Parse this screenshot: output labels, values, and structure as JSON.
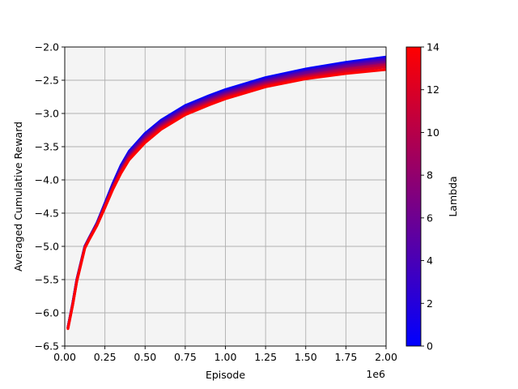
{
  "chart_data": {
    "type": "line",
    "title": "",
    "xlabel": "Episode",
    "ylabel": "Averaged Cumulative Reward",
    "x_offset_label": "1e6",
    "xlim": [
      0,
      2.0
    ],
    "ylim": [
      -6.5,
      -2.0
    ],
    "x_ticks": [
      "0.00",
      "0.25",
      "0.50",
      "0.75",
      "1.00",
      "1.25",
      "1.50",
      "1.75",
      "2.00"
    ],
    "y_ticks": [
      "−6.5",
      "−6.0",
      "−5.5",
      "−5.0",
      "−4.5",
      "−4.0",
      "−3.5",
      "−3.0",
      "−2.5",
      "−2.0"
    ],
    "grid": true,
    "plot_background": "#f4f4f4",
    "colorbar": {
      "label": "Lambda",
      "range": [
        0,
        14
      ],
      "ticks": [
        "0",
        "2",
        "4",
        "6",
        "8",
        "10",
        "12",
        "14"
      ],
      "colors": [
        "#0000ff",
        "#ff0000"
      ]
    },
    "x": [
      0.02,
      0.05,
      0.075,
      0.1,
      0.125,
      0.15,
      0.2,
      0.25,
      0.3,
      0.35,
      0.4,
      0.5,
      0.6,
      0.75,
      0.9,
      1.0,
      1.25,
      1.5,
      1.75,
      2.0
    ],
    "series": [
      {
        "lambda": 0,
        "color": "#0000ff",
        "values": [
          -6.22,
          -5.85,
          -5.5,
          -5.25,
          -5.0,
          -4.88,
          -4.65,
          -4.35,
          -4.05,
          -3.78,
          -3.57,
          -3.3,
          -3.1,
          -2.88,
          -2.73,
          -2.64,
          -2.46,
          -2.33,
          -2.23,
          -2.15
        ]
      },
      {
        "lambda": 2,
        "color": "#2400db",
        "values": [
          -6.22,
          -5.85,
          -5.5,
          -5.25,
          -5.0,
          -4.88,
          -4.65,
          -4.36,
          -4.07,
          -3.8,
          -3.59,
          -3.32,
          -3.12,
          -2.9,
          -2.75,
          -2.66,
          -2.48,
          -2.35,
          -2.25,
          -2.17
        ]
      },
      {
        "lambda": 4,
        "color": "#4900b6",
        "values": [
          -6.22,
          -5.86,
          -5.5,
          -5.25,
          -5.0,
          -4.88,
          -4.66,
          -4.37,
          -4.08,
          -3.82,
          -3.61,
          -3.34,
          -3.14,
          -2.92,
          -2.77,
          -2.68,
          -2.5,
          -2.37,
          -2.27,
          -2.19
        ]
      },
      {
        "lambda": 6,
        "color": "#6d0092",
        "values": [
          -6.22,
          -5.86,
          -5.51,
          -5.26,
          -5.01,
          -4.89,
          -4.67,
          -4.38,
          -4.1,
          -3.84,
          -3.63,
          -3.36,
          -3.16,
          -2.94,
          -2.79,
          -2.7,
          -2.52,
          -2.39,
          -2.29,
          -2.22
        ]
      },
      {
        "lambda": 8,
        "color": "#92006d",
        "values": [
          -6.23,
          -5.86,
          -5.51,
          -5.26,
          -5.01,
          -4.89,
          -4.67,
          -4.39,
          -4.11,
          -3.86,
          -3.65,
          -3.38,
          -3.18,
          -2.96,
          -2.81,
          -2.72,
          -2.54,
          -2.42,
          -2.32,
          -2.25
        ]
      },
      {
        "lambda": 10,
        "color": "#b60049",
        "values": [
          -6.23,
          -5.87,
          -5.52,
          -5.27,
          -5.02,
          -4.9,
          -4.68,
          -4.4,
          -4.12,
          -3.87,
          -3.67,
          -3.4,
          -3.2,
          -2.98,
          -2.83,
          -2.74,
          -2.56,
          -2.44,
          -2.34,
          -2.27
        ]
      },
      {
        "lambda": 12,
        "color": "#db0024",
        "values": [
          -6.23,
          -5.87,
          -5.52,
          -5.27,
          -5.02,
          -4.9,
          -4.68,
          -4.41,
          -4.13,
          -3.88,
          -3.68,
          -3.42,
          -3.22,
          -3.0,
          -2.85,
          -2.76,
          -2.58,
          -2.46,
          -2.37,
          -2.3
        ]
      },
      {
        "lambda": 14,
        "color": "#ff0000",
        "values": [
          -6.24,
          -5.88,
          -5.53,
          -5.28,
          -5.03,
          -4.91,
          -4.69,
          -4.42,
          -4.14,
          -3.9,
          -3.7,
          -3.44,
          -3.24,
          -3.02,
          -2.87,
          -2.78,
          -2.6,
          -2.48,
          -2.4,
          -2.34
        ]
      }
    ]
  }
}
